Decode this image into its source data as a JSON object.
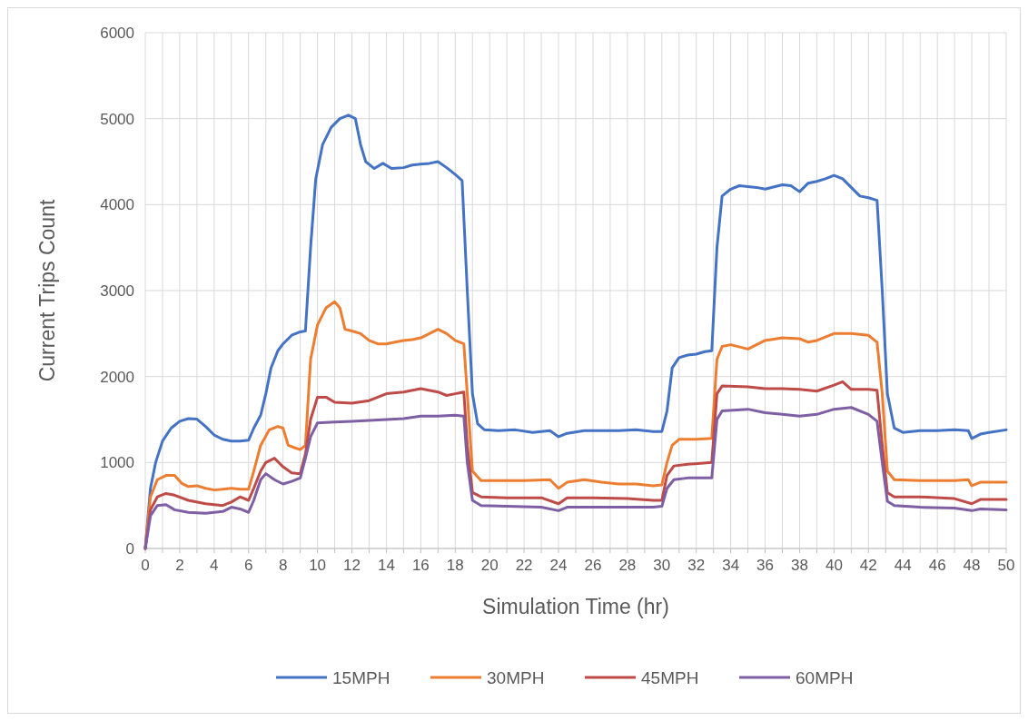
{
  "chart_data": {
    "type": "line",
    "xlabel": "Simulation Time (hr)",
    "ylabel": "Current Trips Count",
    "xlim": [
      0,
      50
    ],
    "ylim": [
      0,
      6000
    ],
    "xticks": [
      0,
      {
        "value": 1,
        "label": null
      },
      2,
      {
        "value": 3,
        "label": null
      },
      4,
      {
        "value": 5,
        "label": null
      },
      6,
      {
        "value": 7,
        "label": null
      },
      8,
      {
        "value": 9,
        "label": null
      },
      10,
      {
        "value": 11,
        "label": null
      },
      12,
      {
        "value": 13,
        "label": null
      },
      14,
      {
        "value": 15,
        "label": null
      },
      16,
      {
        "value": 17,
        "label": null
      },
      18,
      {
        "value": 19,
        "label": null
      },
      20,
      {
        "value": 21,
        "label": null
      },
      22,
      {
        "value": 23,
        "label": null
      },
      24,
      {
        "value": 25,
        "label": null
      },
      26,
      {
        "value": 27,
        "label": null
      },
      28,
      {
        "value": 29,
        "label": null
      },
      30,
      {
        "value": 31,
        "label": null
      },
      32,
      {
        "value": 33,
        "label": null
      },
      34,
      {
        "value": 35,
        "label": null
      },
      36,
      {
        "value": 37,
        "label": null
      },
      38,
      {
        "value": 39,
        "label": null
      },
      40,
      {
        "value": 41,
        "label": null
      },
      42,
      {
        "value": 43,
        "label": null
      },
      44,
      {
        "value": 45,
        "label": null
      },
      46,
      {
        "value": 47,
        "label": null
      },
      48,
      {
        "value": 49,
        "label": null
      },
      50
    ],
    "yticks": [
      0,
      1000,
      2000,
      3000,
      4000,
      5000,
      6000
    ],
    "grid": true,
    "legend": "bottom",
    "marker": "none",
    "line_style": "solid",
    "series": [
      {
        "name": "15MPH",
        "color": "#4472c4",
        "x": [
          0,
          0.3,
          0.6,
          1,
          1.5,
          2,
          2.5,
          3,
          3.5,
          4,
          4.5,
          5,
          5.5,
          6,
          6.3,
          6.7,
          7,
          7.3,
          7.7,
          8,
          8.5,
          9,
          9.3,
          9.6,
          9.9,
          10.3,
          10.8,
          11.3,
          11.8,
          12.2,
          12.5,
          12.8,
          13.3,
          13.8,
          14.3,
          15,
          15.5,
          16,
          16.5,
          17,
          17.5,
          18,
          18.4,
          18.7,
          19,
          19.3,
          19.7,
          20.5,
          21.5,
          22.5,
          23.5,
          24,
          24.5,
          25.5,
          26.5,
          27.5,
          28.5,
          29.5,
          30,
          30.3,
          30.6,
          31,
          31.5,
          32,
          32.5,
          32.9,
          33.2,
          33.5,
          34,
          34.5,
          35,
          35.5,
          36,
          37,
          37.5,
          38,
          38.5,
          39,
          39.5,
          40,
          40.5,
          41,
          41.5,
          42,
          42.5,
          42.8,
          43.1,
          43.5,
          44,
          45,
          46,
          47,
          47.8,
          48,
          48.5,
          49,
          50
        ],
        "values": [
          0,
          700,
          1000,
          1250,
          1400,
          1480,
          1510,
          1505,
          1420,
          1320,
          1270,
          1250,
          1250,
          1260,
          1400,
          1550,
          1800,
          2100,
          2300,
          2380,
          2480,
          2520,
          2530,
          3500,
          4300,
          4700,
          4900,
          5000,
          5040,
          5000,
          4700,
          4500,
          4420,
          4480,
          4420,
          4430,
          4460,
          4470,
          4480,
          4500,
          4430,
          4350,
          4280,
          3000,
          1800,
          1450,
          1380,
          1370,
          1380,
          1350,
          1370,
          1300,
          1340,
          1370,
          1370,
          1370,
          1380,
          1360,
          1360,
          1600,
          2100,
          2220,
          2250,
          2260,
          2290,
          2300,
          3500,
          4100,
          4180,
          4220,
          4210,
          4200,
          4180,
          4230,
          4220,
          4150,
          4250,
          4270,
          4300,
          4340,
          4300,
          4200,
          4100,
          4080,
          4050,
          3000,
          1800,
          1400,
          1350,
          1370,
          1370,
          1380,
          1370,
          1280,
          1330,
          1350,
          1380
        ]
      },
      {
        "name": "30MPH",
        "color": "#ed7d31",
        "x": [
          0,
          0.3,
          0.7,
          1.2,
          1.7,
          2.1,
          2.5,
          3,
          3.5,
          4,
          4.5,
          5,
          5.5,
          6,
          6.3,
          6.7,
          7.2,
          7.7,
          8,
          8.3,
          8.7,
          9,
          9.3,
          9.6,
          10,
          10.5,
          11,
          11.3,
          11.6,
          12,
          12.5,
          13,
          13.5,
          14,
          14.5,
          15,
          15.5,
          16,
          16.5,
          17,
          17.5,
          18,
          18.5,
          18.7,
          19,
          19.5,
          20.5,
          22,
          23.5,
          24,
          24.5,
          25.5,
          26.5,
          27.5,
          28.5,
          29.5,
          30,
          30.3,
          30.6,
          31,
          32,
          32.9,
          33.2,
          33.5,
          34,
          35,
          36,
          37,
          38,
          38.5,
          39,
          40,
          41,
          42,
          42.5,
          42.8,
          43.1,
          43.5,
          45,
          47,
          47.8,
          48,
          48.5,
          50
        ],
        "values": [
          0,
          600,
          800,
          850,
          850,
          760,
          720,
          730,
          700,
          680,
          690,
          700,
          690,
          690,
          900,
          1200,
          1380,
          1420,
          1400,
          1200,
          1170,
          1150,
          1200,
          2200,
          2600,
          2800,
          2870,
          2800,
          2550,
          2530,
          2500,
          2420,
          2380,
          2380,
          2400,
          2420,
          2430,
          2450,
          2500,
          2550,
          2500,
          2420,
          2380,
          1800,
          900,
          790,
          790,
          790,
          800,
          700,
          770,
          800,
          770,
          750,
          750,
          730,
          740,
          1000,
          1200,
          1270,
          1270,
          1280,
          2200,
          2350,
          2370,
          2320,
          2420,
          2450,
          2440,
          2400,
          2420,
          2500,
          2500,
          2480,
          2400,
          1800,
          900,
          800,
          790,
          790,
          800,
          730,
          770,
          770
        ]
      },
      {
        "name": "45MPH",
        "color": "#be4b48",
        "x": [
          0,
          0.3,
          0.7,
          1.2,
          1.7,
          2.5,
          3.5,
          4.5,
          5,
          5.5,
          6,
          6.3,
          6.7,
          7,
          7.5,
          8,
          8.5,
          9,
          9.3,
          9.6,
          10,
          10.5,
          11,
          12,
          13,
          14,
          15,
          16,
          17,
          17.5,
          18,
          18.5,
          18.7,
          19,
          19.5,
          21,
          23,
          24,
          24.5,
          26,
          28,
          29.5,
          30,
          30.3,
          30.7,
          31.5,
          32.9,
          33.2,
          33.5,
          35,
          36,
          37,
          38,
          39,
          40,
          40.5,
          41,
          42,
          42.5,
          42.8,
          43.1,
          43.5,
          45,
          47,
          48,
          48.5,
          50
        ],
        "values": [
          0,
          450,
          600,
          640,
          620,
          560,
          520,
          500,
          540,
          600,
          560,
          700,
          900,
          1000,
          1050,
          950,
          880,
          870,
          1100,
          1500,
          1760,
          1760,
          1700,
          1690,
          1720,
          1800,
          1820,
          1860,
          1820,
          1780,
          1800,
          1820,
          1200,
          650,
          600,
          590,
          590,
          520,
          590,
          590,
          580,
          560,
          560,
          850,
          960,
          980,
          1000,
          1800,
          1890,
          1880,
          1860,
          1860,
          1850,
          1830,
          1900,
          1940,
          1850,
          1850,
          1840,
          1200,
          650,
          600,
          600,
          580,
          520,
          570,
          570
        ]
      },
      {
        "name": "60MPH",
        "color": "#7e5fa4",
        "x": [
          0,
          0.3,
          0.7,
          1.2,
          1.7,
          2.5,
          3.5,
          4.5,
          5,
          5.5,
          6,
          6.3,
          6.7,
          7,
          7.5,
          8,
          8.5,
          9,
          9.3,
          9.6,
          10,
          11,
          12,
          13,
          14,
          15,
          16,
          17,
          18,
          18.5,
          18.7,
          19,
          19.5,
          21,
          23,
          24,
          24.5,
          26,
          28,
          29.5,
          30,
          30.3,
          30.7,
          31.5,
          32.9,
          33.2,
          33.5,
          35,
          36,
          37,
          38,
          39,
          40,
          41,
          42,
          42.5,
          42.8,
          43.1,
          43.5,
          45,
          47,
          48,
          48.5,
          50
        ],
        "values": [
          0,
          380,
          500,
          510,
          450,
          420,
          410,
          430,
          480,
          460,
          420,
          560,
          800,
          870,
          800,
          750,
          780,
          820,
          1050,
          1300,
          1460,
          1470,
          1480,
          1490,
          1500,
          1510,
          1540,
          1540,
          1550,
          1540,
          1000,
          560,
          500,
          490,
          480,
          440,
          480,
          480,
          480,
          480,
          490,
          700,
          800,
          820,
          820,
          1500,
          1600,
          1620,
          1580,
          1560,
          1540,
          1560,
          1620,
          1640,
          1560,
          1480,
          1000,
          550,
          500,
          480,
          470,
          440,
          460,
          450
        ]
      }
    ]
  }
}
